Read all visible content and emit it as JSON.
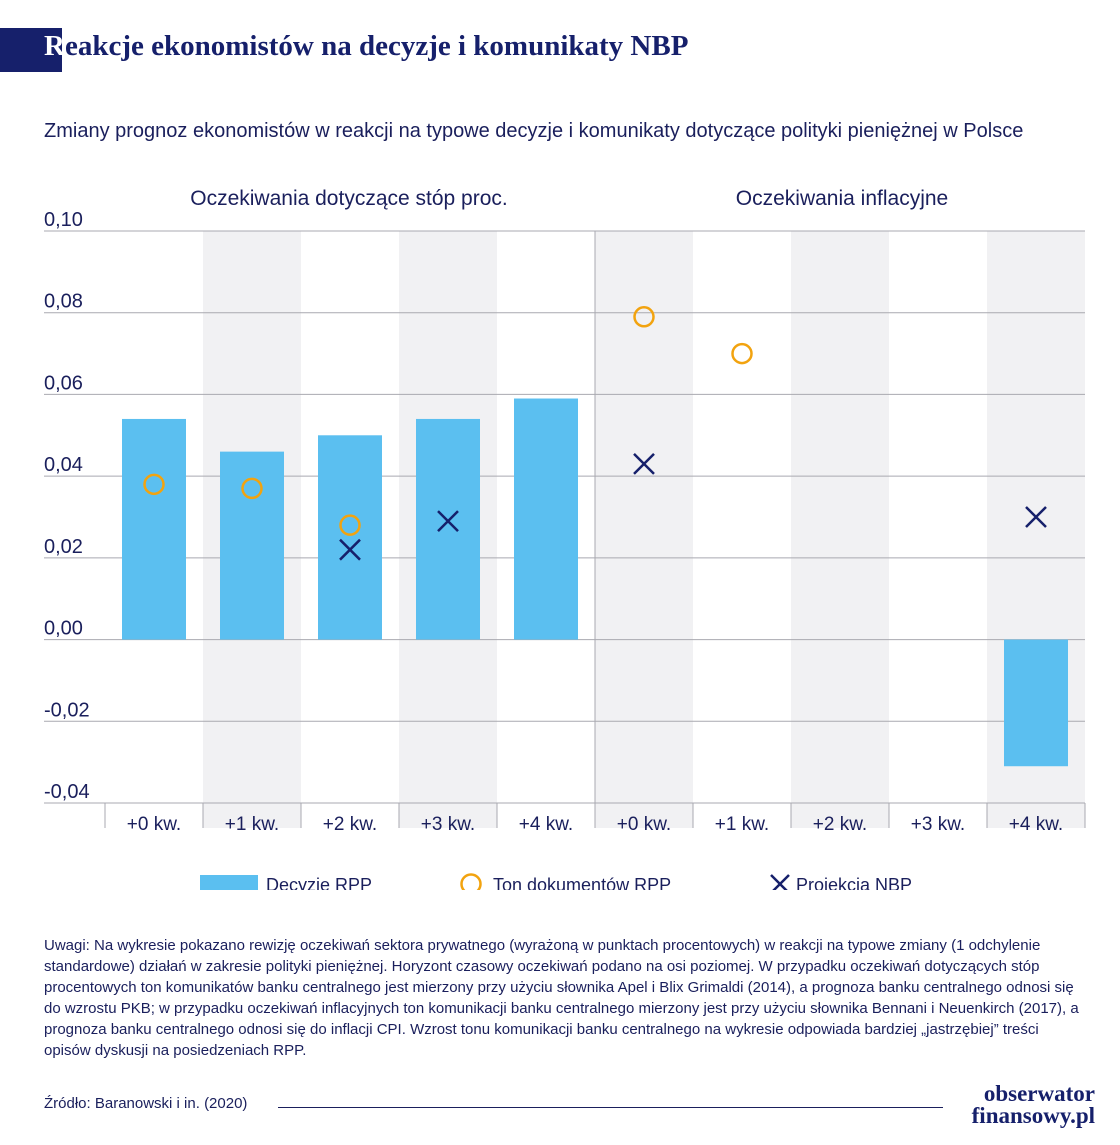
{
  "header": {
    "title_first": "R",
    "title_rest": "eakcje ekonomistów na decyzje i komunikaty NBP",
    "subtitle": "Zmiany prognoz ekonomistów w reakcji na typowe decyzje i komunikaty dotyczące polityki pieniężnej w Polsce"
  },
  "chart_data": {
    "type": "bar",
    "panels": [
      "Oczekiwania dotyczące stóp proc.",
      "Oczekiwania inflacyjne"
    ],
    "categories": [
      "+0 kw.",
      "+1 kw.",
      "+2 kw.",
      "+3 kw.",
      "+4 kw.",
      "+0 kw.",
      "+1 kw.",
      "+2 kw.",
      "+3 kw.",
      "+4 kw."
    ],
    "ylim": [
      -0.04,
      0.1
    ],
    "yticks": [
      0.1,
      0.08,
      0.06,
      0.04,
      0.02,
      0.0,
      -0.02,
      -0.04
    ],
    "ytick_labels": [
      "0,10",
      "0,08",
      "0,06",
      "0,04",
      "0,02",
      "0,00",
      "-0,02",
      "-0,04"
    ],
    "series": [
      {
        "name": "Decyzje RPP",
        "kind": "bar",
        "color": "#5bbff0",
        "values": [
          0.054,
          0.046,
          0.05,
          0.054,
          0.059,
          null,
          null,
          null,
          null,
          -0.031
        ]
      },
      {
        "name": "Ton dokumentów RPP",
        "kind": "circle",
        "color": "#f2a30f",
        "values": [
          0.038,
          0.037,
          0.028,
          null,
          null,
          0.079,
          0.07,
          null,
          null,
          null
        ]
      },
      {
        "name": "Projekcja NBP",
        "kind": "cross",
        "color": "#16206b",
        "values": [
          null,
          null,
          0.022,
          0.029,
          null,
          0.043,
          null,
          null,
          null,
          0.03
        ]
      }
    ],
    "grid": true,
    "legend": "bottom"
  },
  "notes": "Uwagi: Na wykresie pokazano rewizję oczekiwań sektora prywatnego (wyrażoną w punktach procentowych) w reakcji na typowe zmiany (1 odchylenie standardowe) działań w zakresie polityki pieniężnej. Horyzont czasowy oczekiwań podano na osi poziomej. W przypadku oczekiwań dotyczących stóp procentowych ton komunikatów banku centralnego jest mierzony przy użyciu słownika Apel i Blix Grimaldi (2014), a prognoza banku centralnego odnosi się do wzrostu PKB; w przypadku oczekiwań inflacyjnych ton komunikacji banku centralnego mierzony jest przy użyciu słownika Bennani i Neuenkirch (2017), a prognoza banku centralnego odnosi się do inflacji CPI. Wzrost tonu komunikacji banku centralnego na wykresie odpowiada bardziej „jastrzębiej” treści opisów dyskusji na posiedzeniach RPP.",
  "source": "Źródło: Baranowski i in. (2020)",
  "logo": {
    "line1": "obserwator",
    "line2": "finansowy.pl"
  }
}
